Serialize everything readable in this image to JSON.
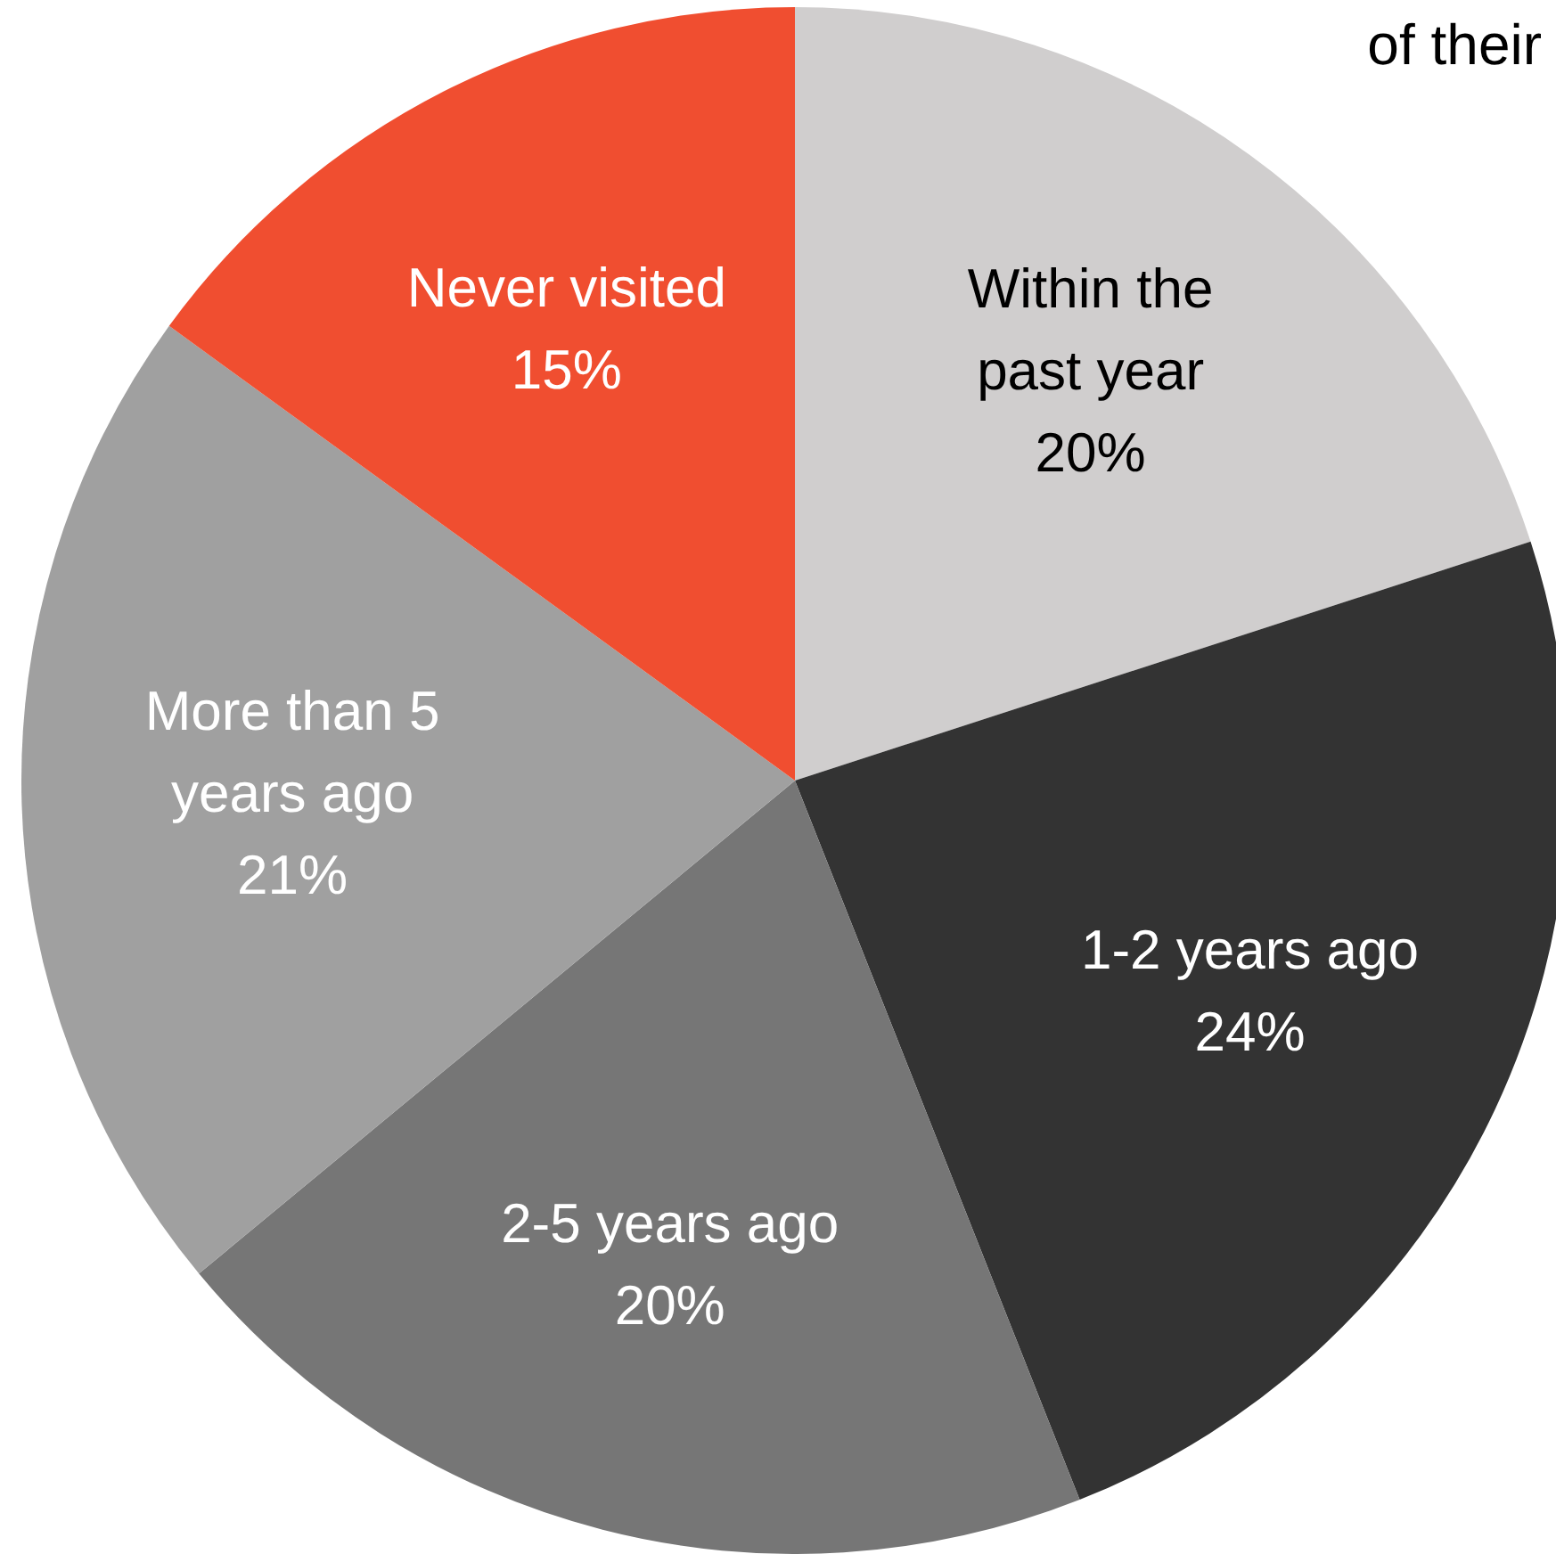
{
  "chart_data": {
    "type": "pie",
    "title": "of their",
    "categories": [
      "Within the past year",
      "1-2 years ago",
      "2-5 years ago",
      "More than 5 years ago",
      "Never visited"
    ],
    "values": [
      20,
      24,
      20,
      21,
      15
    ],
    "colors": [
      "#d0cece",
      "#333333",
      "#767676",
      "#a0a0a0",
      "#f04e30"
    ],
    "value_labels": [
      "20%",
      "24%",
      "20%",
      "21%",
      "15%"
    ]
  }
}
